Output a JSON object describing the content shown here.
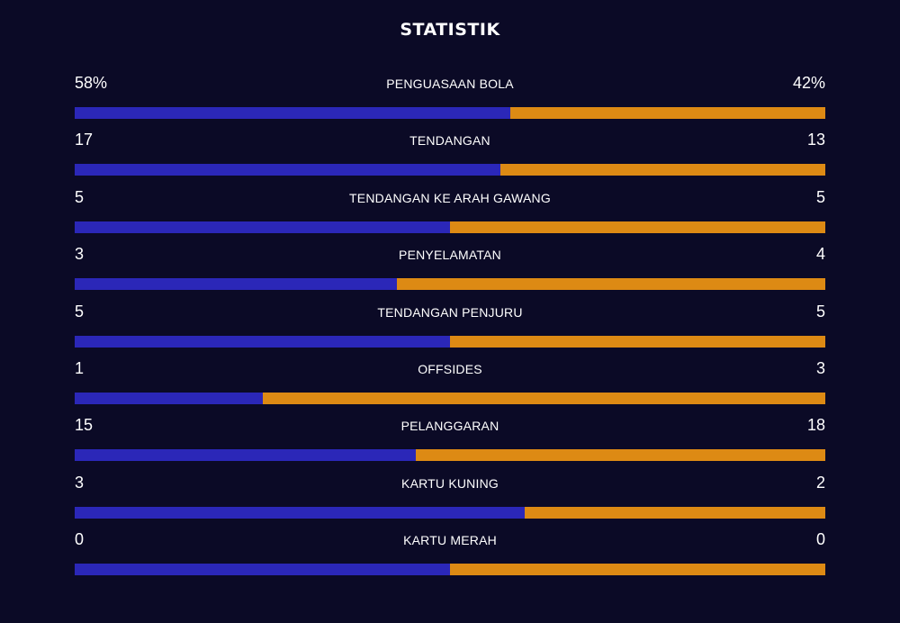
{
  "title": "STATISTIK",
  "colors": {
    "background": "#0b0a26",
    "home": "#2b27b8",
    "away": "#dd8a14"
  },
  "stats": [
    {
      "name": "PENGUASAAN BOLA",
      "home_label": "58%",
      "away_label": "42%",
      "home_share": 0.58
    },
    {
      "name": "TENDANGAN",
      "home_label": "17",
      "away_label": "13",
      "home_share": 0.567
    },
    {
      "name": "TENDANGAN KE ARAH GAWANG",
      "home_label": "5",
      "away_label": "5",
      "home_share": 0.5
    },
    {
      "name": "PENYELAMATAN",
      "home_label": "3",
      "away_label": "4",
      "home_share": 0.429
    },
    {
      "name": "TENDANGAN PENJURU",
      "home_label": "5",
      "away_label": "5",
      "home_share": 0.5
    },
    {
      "name": "OFFSIDES",
      "home_label": "1",
      "away_label": "3",
      "home_share": 0.25
    },
    {
      "name": "PELANGGARAN",
      "home_label": "15",
      "away_label": "18",
      "home_share": 0.455
    },
    {
      "name": "KARTU KUNING",
      "home_label": "3",
      "away_label": "2",
      "home_share": 0.6
    },
    {
      "name": "KARTU MERAH",
      "home_label": "0",
      "away_label": "0",
      "home_share": 0.5
    }
  ]
}
